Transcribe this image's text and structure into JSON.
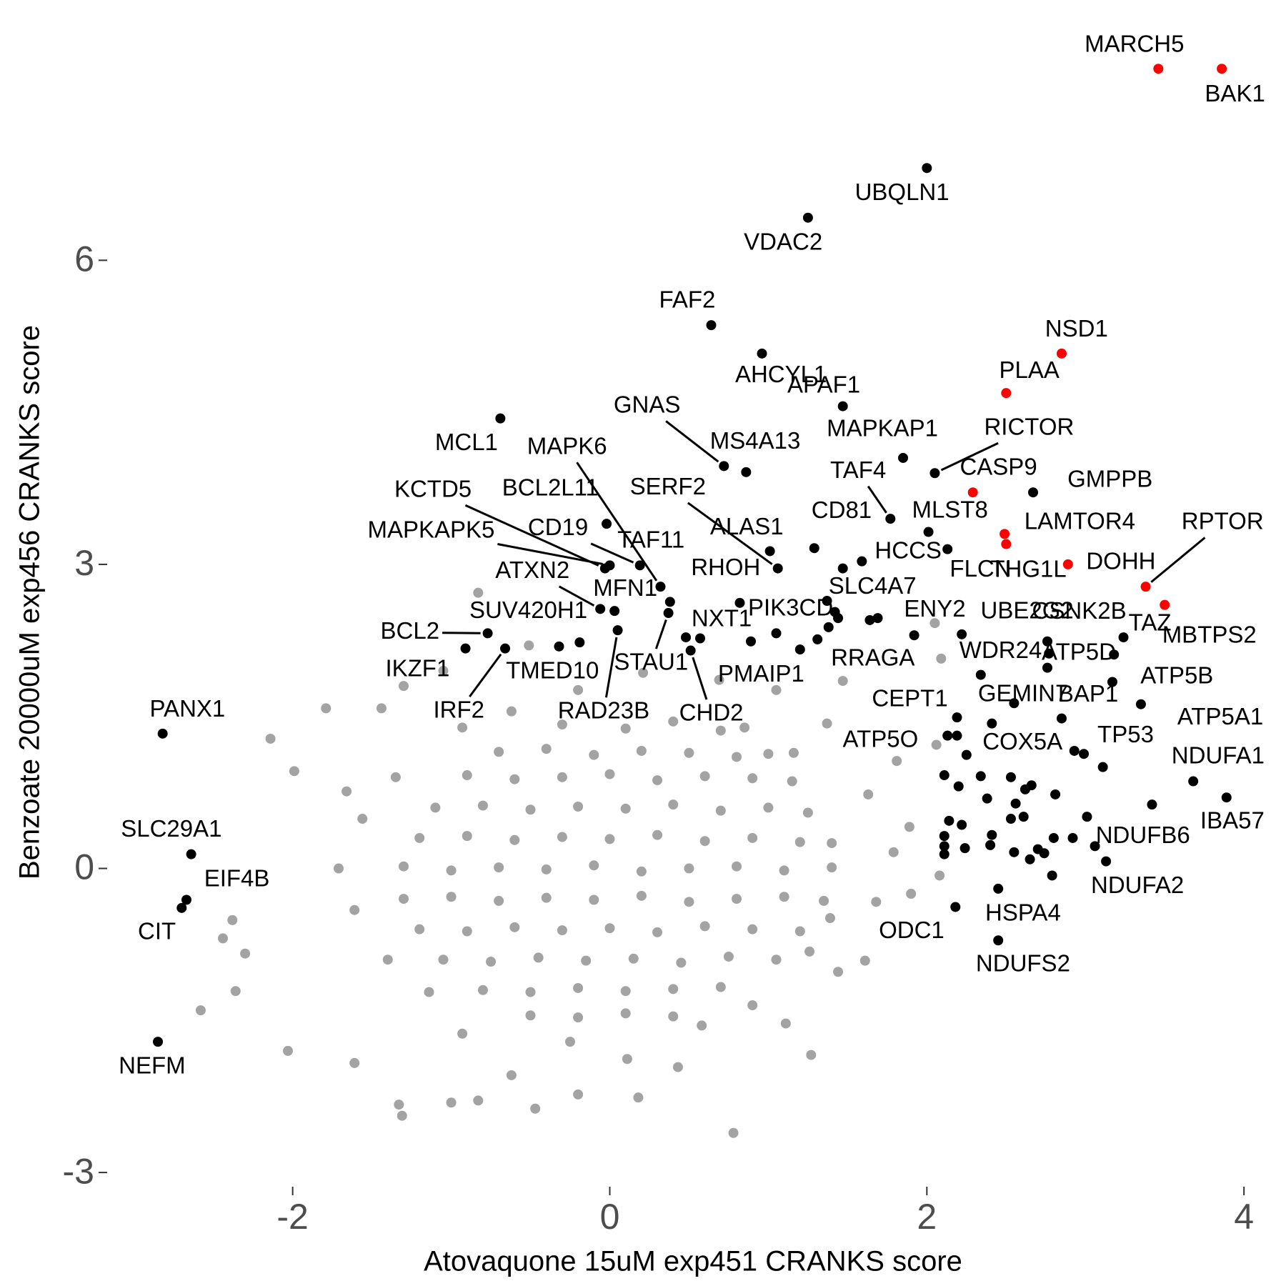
{
  "chart_data": {
    "type": "scatter",
    "x_label": "Atovaquone 15uM exp451 CRANKS score",
    "y_label": "Benzoate 20000uM exp456 CRANKS score",
    "xlim": [
      -3.17,
      4.22
    ],
    "ylim": [
      -3.14,
      8.42
    ],
    "xticks": [
      -2,
      0,
      2,
      4
    ],
    "yticks": [
      -3,
      0,
      3,
      6
    ],
    "grid": false,
    "series": [
      {
        "color": "#a3a3a3",
        "x": [
          -0.3,
          0.1,
          0.4,
          0.7,
          -0.7,
          -0.4,
          -0.1,
          0.2,
          0.5,
          0.8,
          1.0,
          -0.9,
          -0.6,
          -0.3,
          0.0,
          0.3,
          0.6,
          0.9,
          1.15,
          -1.1,
          -0.8,
          -0.5,
          -0.2,
          0.1,
          0.4,
          0.7,
          1.0,
          1.25,
          -1.2,
          -0.9,
          -0.6,
          -0.3,
          0.0,
          0.3,
          0.6,
          0.9,
          1.2,
          1.4,
          -1.3,
          -1.0,
          -0.7,
          -0.4,
          -0.1,
          0.2,
          0.5,
          0.8,
          1.1,
          1.4,
          -1.3,
          -1.0,
          -0.7,
          -0.4,
          -0.1,
          0.2,
          0.5,
          0.8,
          1.1,
          1.35,
          -1.2,
          -0.9,
          -0.6,
          -0.3,
          0.0,
          0.3,
          0.6,
          0.9,
          1.2,
          -1.05,
          -0.75,
          -0.45,
          -0.15,
          0.15,
          0.45,
          0.75,
          1.05,
          -0.8,
          -0.5,
          -0.2,
          0.1,
          0.4,
          0.7,
          -0.5,
          -0.2,
          0.1,
          0.4,
          -1.79,
          -1.44,
          -2.14,
          -1.99,
          -1.66,
          -2.38,
          -2.44,
          -2.3,
          -2.58,
          -2.36,
          -2.03,
          -1.61,
          -1.33,
          -1.31,
          -1.0,
          -0.83,
          -0.47,
          -0.2,
          0.18,
          0.78,
          1.27,
          1.11,
          1.44,
          1.61,
          1.9,
          2.08,
          2.06,
          2.09,
          2.05,
          1.47,
          -0.83,
          -1.3,
          -1.05,
          -0.51,
          -0.2,
          0.21,
          0.69,
          1.05,
          1.37,
          1.81,
          1.89,
          1.79,
          1.68,
          1.39,
          1.26,
          0.9,
          0.58,
          0.43,
          0.11,
          -0.25,
          -0.62,
          -0.93,
          -1.14,
          -1.4,
          -1.61,
          -1.71,
          -1.56,
          -1.35,
          -0.93,
          -0.62,
          0.85,
          1.16,
          1.63
        ],
        "y": [
          1.42,
          1.38,
          1.45,
          1.36,
          1.15,
          1.18,
          1.12,
          1.16,
          1.14,
          1.1,
          1.13,
          0.92,
          0.88,
          0.9,
          0.93,
          0.87,
          0.91,
          0.89,
          0.86,
          0.6,
          0.62,
          0.58,
          0.61,
          0.59,
          0.63,
          0.57,
          0.6,
          0.55,
          0.3,
          0.32,
          0.28,
          0.31,
          0.29,
          0.33,
          0.27,
          0.3,
          0.26,
          0.25,
          0.02,
          -0.02,
          0.01,
          -0.01,
          0.03,
          -0.03,
          0.0,
          0.02,
          -0.02,
          0.01,
          -0.3,
          -0.28,
          -0.32,
          -0.29,
          -0.31,
          -0.27,
          -0.33,
          -0.3,
          -0.28,
          -0.32,
          -0.6,
          -0.62,
          -0.58,
          -0.61,
          -0.59,
          -0.63,
          -0.57,
          -0.6,
          -0.62,
          -0.9,
          -0.92,
          -0.88,
          -0.91,
          -0.89,
          -0.93,
          -0.87,
          -0.9,
          -1.2,
          -1.22,
          -1.18,
          -1.21,
          -1.19,
          -1.17,
          -1.45,
          -1.47,
          -1.43,
          -1.46,
          1.58,
          1.58,
          1.28,
          0.96,
          0.76,
          -0.51,
          -0.69,
          -0.84,
          -1.4,
          -1.21,
          -1.8,
          -1.92,
          -2.33,
          -2.44,
          -2.31,
          -2.29,
          -2.37,
          -2.23,
          -2.26,
          -2.61,
          -1.84,
          -1.53,
          -1.02,
          -0.91,
          -0.25,
          -0.07,
          1.22,
          2.07,
          2.42,
          1.85,
          2.72,
          1.8,
          1.95,
          2.2,
          1.76,
          1.93,
          1.86,
          1.76,
          1.43,
          1.06,
          0.41,
          0.16,
          -0.33,
          -0.49,
          -0.82,
          -1.35,
          -1.55,
          -1.96,
          -1.88,
          -1.71,
          -2.04,
          -1.63,
          -1.22,
          -0.9,
          -0.41,
          0.0,
          0.49,
          0.9,
          1.39,
          1.55,
          1.39,
          1.14,
          0.73
        ]
      },
      {
        "color": "#000000",
        "x": [
          1.47,
          1.42,
          1.44,
          1.64,
          1.69,
          1.05,
          1.2,
          1.38,
          2.76,
          2.77,
          2.19,
          2.25,
          2.11,
          2.34,
          2.2,
          2.38,
          2.53,
          2.66,
          2.62,
          2.81,
          2.56,
          2.61,
          2.53,
          2.14,
          2.22,
          3.01,
          2.41,
          2.8,
          2.92,
          2.99,
          3.11,
          3.06,
          2.11,
          2.24,
          2.4,
          2.7,
          2.74,
          2.65,
          2.11,
          2.79,
          2.11,
          2.55
        ],
        "y": [
          2.96,
          2.53,
          2.47,
          2.45,
          2.47,
          2.32,
          2.16,
          2.38,
          2.24,
          2.12,
          1.31,
          1.12,
          0.92,
          0.91,
          0.81,
          0.69,
          0.9,
          0.82,
          0.78,
          0.73,
          0.64,
          0.51,
          0.49,
          0.47,
          0.43,
          0.51,
          0.33,
          0.3,
          0.3,
          1.13,
          1.0,
          0.22,
          0.22,
          0.2,
          0.23,
          0.19,
          0.15,
          0.09,
          0.14,
          -0.07,
          0.32,
          0.16
        ]
      },
      {
        "color": "#000000",
        "labels": [
          "UBQLN1",
          "VDAC2",
          "FAF2",
          "AHCYL1",
          "APAF1",
          "MCL1",
          "GNAS",
          "MS4A13",
          "MAPKAP1",
          "RICTOR",
          "TAF4",
          "MLST8",
          "GMPPB",
          "LAMTOR4",
          "HCCS",
          "CD81",
          "ALAS1",
          "SERF2",
          "MAPK6",
          "KCTD5",
          "CD19",
          "BCL2L11",
          "MAPKAPK5",
          "TAF11",
          "ATXN2",
          "MFN1",
          "SUV420H1",
          "BCL2",
          "IKZF1",
          "TMED10",
          "IRF2",
          "RAD23B",
          "STAU1",
          "NXT1",
          "PMAIP1",
          "CHD2",
          "RHOH",
          "PIK3CD",
          "SLC4A7",
          "RRAGA",
          "ENY2",
          "UBE2G2",
          "CSNK2B",
          "TAZ",
          "WDR24",
          "ATP5D",
          "CEPT1",
          "GEMIN7",
          "BAP1",
          "ATP5B",
          "ATP5O",
          "COX5A",
          "TP53",
          "ATP5A1",
          "NDUFA1",
          "IBA57",
          "NDUFB6",
          "NDUFA2",
          "HSPA4",
          "ODC1",
          "NDUFS2",
          "PANX1",
          "SLC29A1",
          "EIF4B",
          "CIT",
          "NEFM"
        ],
        "x": [
          2.0,
          1.25,
          0.64,
          0.96,
          1.47,
          -0.69,
          0.72,
          0.86,
          1.85,
          2.05,
          1.77,
          2.01,
          2.67,
          2.13,
          1.59,
          1.29,
          1.01,
          1.06,
          0.32,
          -0.03,
          0.19,
          -0.02,
          0.0,
          0.38,
          -0.06,
          0.03,
          -0.19,
          -0.77,
          -0.91,
          -0.32,
          -0.66,
          0.05,
          0.37,
          0.57,
          0.48,
          0.51,
          0.82,
          0.89,
          1.37,
          1.31,
          1.92,
          2.22,
          3.18,
          3.24,
          2.34,
          2.76,
          2.19,
          2.55,
          2.85,
          3.17,
          2.13,
          2.41,
          2.93,
          3.35,
          3.68,
          3.89,
          3.42,
          3.13,
          2.45,
          2.18,
          2.45,
          -2.82,
          -2.64,
          -2.67,
          -2.7,
          -2.85
        ],
        "y": [
          6.91,
          6.42,
          5.36,
          5.08,
          4.56,
          4.44,
          3.97,
          3.91,
          4.05,
          3.9,
          3.45,
          3.32,
          3.71,
          3.15,
          3.03,
          3.16,
          3.13,
          2.96,
          2.78,
          2.96,
          2.99,
          3.4,
          2.99,
          2.63,
          2.56,
          2.54,
          2.23,
          2.32,
          2.17,
          2.19,
          2.17,
          2.35,
          2.52,
          2.27,
          2.28,
          2.15,
          2.62,
          2.24,
          2.64,
          2.26,
          2.3,
          2.31,
          2.11,
          2.28,
          1.91,
          1.98,
          1.49,
          1.63,
          1.48,
          1.84,
          1.31,
          1.43,
          1.16,
          1.62,
          0.86,
          0.7,
          0.63,
          0.07,
          -0.2,
          -0.38,
          -0.71,
          1.33,
          0.14,
          -0.31,
          -0.39,
          -1.71
        ]
      },
      {
        "color": "#ff0000",
        "labels": [
          "MARCH5",
          "BAK1",
          "NSD1",
          "PLAA",
          "CASP9",
          "FLCN",
          "THG1L",
          "DOHH",
          "RPTOR",
          "MBTPS2"
        ],
        "x": [
          3.46,
          3.86,
          2.85,
          2.5,
          2.29,
          2.49,
          2.5,
          2.89,
          3.38,
          3.5
        ],
        "y": [
          7.89,
          7.89,
          5.08,
          4.69,
          3.71,
          3.3,
          3.2,
          3.0,
          2.78,
          2.6
        ]
      }
    ]
  }
}
